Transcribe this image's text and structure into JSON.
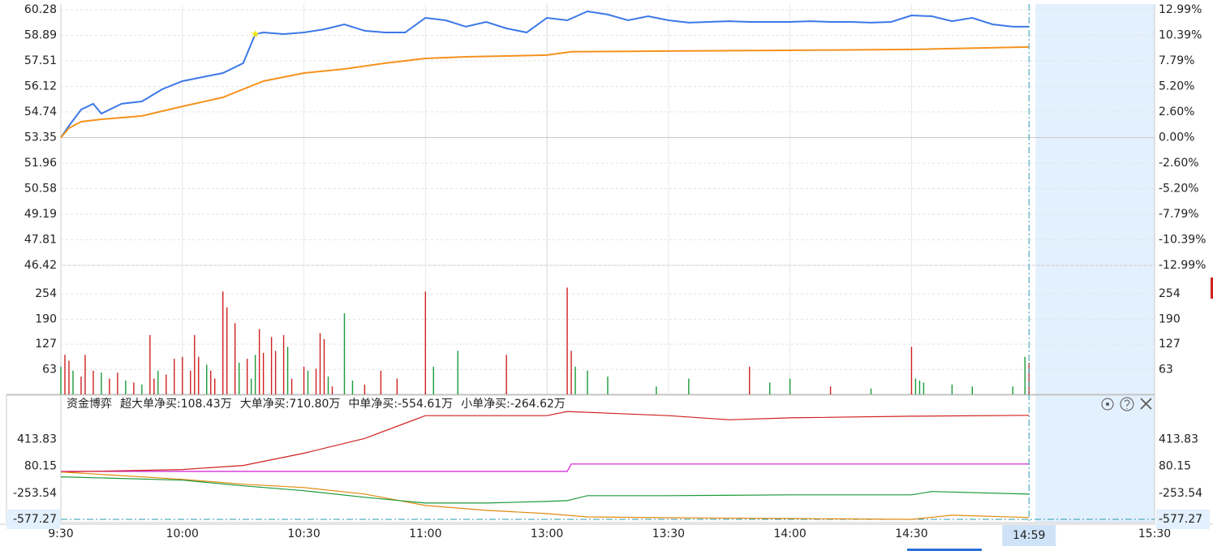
{
  "chart_data": [
    {
      "type": "line",
      "xlim": [
        0,
        270
      ],
      "ylim": [
        46.42,
        60.28
      ],
      "yticks": [
        60.28,
        58.89,
        57.51,
        56.12,
        54.74,
        53.35,
        51.96,
        50.58,
        49.19,
        47.81,
        46.42
      ],
      "y2lim": [
        -12.99,
        12.99
      ],
      "y2ticks": [
        {
          "value": 12.99,
          "label": "12.99%"
        },
        {
          "value": 10.39,
          "label": "10.39%"
        },
        {
          "value": 7.79,
          "label": "7.79%"
        },
        {
          "value": 5.2,
          "label": "5.20%"
        },
        {
          "value": 2.6,
          "label": "2.60%"
        },
        {
          "value": 0,
          "label": "0.00%"
        },
        {
          "value": -2.6,
          "label": "-2.60%"
        },
        {
          "value": -5.2,
          "label": "-5.20%"
        },
        {
          "value": -7.79,
          "label": "-7.79%"
        },
        {
          "value": -10.39,
          "label": "-10.39%"
        },
        {
          "value": -12.99,
          "label": "-12.99%"
        }
      ],
      "grid": true,
      "series": [
        {
          "color": "#3b78e7",
          "x": [
            0,
            2,
            5,
            8,
            10,
            15,
            20,
            25,
            30,
            35,
            40,
            45,
            48,
            50,
            55,
            60,
            65,
            70,
            75,
            80,
            85,
            90,
            95,
            100,
            105,
            110,
            115,
            120,
            125,
            130,
            135,
            140,
            145,
            150,
            155,
            160,
            165,
            170,
            175,
            180,
            185,
            190,
            195,
            200,
            205,
            210,
            215,
            220,
            225,
            230,
            235,
            239
          ],
          "values": [
            53.35,
            53.99,
            54.87,
            55.18,
            54.65,
            55.18,
            55.31,
            55.97,
            56.41,
            56.63,
            56.85,
            57.38,
            58.96,
            59.05,
            58.96,
            59.05,
            59.22,
            59.49,
            59.14,
            59.05,
            59.05,
            59.84,
            59.71,
            59.36,
            59.62,
            59.27,
            59.05,
            59.84,
            59.71,
            60.19,
            60.02,
            59.71,
            59.93,
            59.71,
            59.58,
            59.62,
            59.66,
            59.62,
            59.62,
            59.62,
            59.66,
            59.62,
            59.62,
            59.58,
            59.62,
            59.97,
            59.93,
            59.66,
            59.84,
            59.49,
            59.36,
            59.36
          ]
        },
        {
          "color": "#f5921e",
          "x": [
            0,
            2,
            5,
            10,
            20,
            30,
            40,
            50,
            60,
            70,
            80,
            90,
            100,
            120,
            126,
            150,
            180,
            210,
            239
          ],
          "values": [
            53.35,
            53.86,
            54.21,
            54.34,
            54.52,
            55.04,
            55.53,
            56.41,
            56.85,
            57.07,
            57.38,
            57.64,
            57.73,
            57.82,
            58.0,
            58.04,
            58.08,
            58.13,
            58.26
          ]
        }
      ],
      "highlight": {
        "x": 48,
        "value": 58.96,
        "color": "#f2e200"
      }
    },
    {
      "type": "bar",
      "xlim": [
        0,
        270
      ],
      "ylim": [
        0,
        320
      ],
      "yticks": [
        254,
        190,
        127,
        63
      ],
      "x": [
        0,
        1,
        2,
        3,
        5,
        6,
        8,
        10,
        12,
        14,
        16,
        18,
        20,
        22,
        23,
        24,
        26,
        28,
        30,
        32,
        33,
        34,
        36,
        37,
        38,
        40,
        41,
        43,
        44,
        46,
        47,
        48,
        49,
        50,
        52,
        53,
        55,
        56,
        57,
        60,
        61,
        63,
        64,
        65,
        66,
        67,
        70,
        72,
        75,
        79,
        83,
        90,
        92,
        98,
        110,
        125,
        126,
        127,
        130,
        135,
        147,
        155,
        170,
        175,
        180,
        190,
        200,
        210,
        211,
        212,
        213,
        220,
        225,
        235,
        238,
        239
      ],
      "values": [
        70,
        100,
        85,
        60,
        45,
        100,
        60,
        55,
        40,
        55,
        35,
        30,
        25,
        150,
        40,
        60,
        50,
        90,
        95,
        60,
        150,
        95,
        75,
        60,
        40,
        260,
        220,
        180,
        80,
        90,
        40,
        100,
        165,
        105,
        145,
        110,
        150,
        120,
        40,
        70,
        60,
        65,
        155,
        140,
        45,
        20,
        205,
        35,
        25,
        60,
        40,
        260,
        70,
        110,
        100,
        270,
        110,
        70,
        60,
        45,
        20,
        40,
        70,
        30,
        40,
        20,
        15,
        120,
        40,
        35,
        30,
        25,
        20,
        20,
        95,
        80
      ],
      "colors": [
        "#1a9a3a",
        "#d02020",
        "#d02020",
        "#1a9a3a",
        "#d02020",
        "#d02020",
        "#d02020",
        "#1a9a3a",
        "#d02020",
        "#d02020",
        "#1a9a3a",
        "#d02020",
        "#1a9a3a",
        "#d02020",
        "#d02020",
        "#1a9a3a",
        "#d02020",
        "#d02020",
        "#d02020",
        "#d02020",
        "#d02020",
        "#d02020",
        "#1a9a3a",
        "#d02020",
        "#d02020",
        "#d02020",
        "#d02020",
        "#d02020",
        "#1a9a3a",
        "#d02020",
        "#1a9a3a",
        "#1a9a3a",
        "#d02020",
        "#d02020",
        "#d02020",
        "#d02020",
        "#d02020",
        "#1a9a3a",
        "#d02020",
        "#d02020",
        "#1a9a3a",
        "#d02020",
        "#d02020",
        "#d02020",
        "#1a9a3a",
        "#d02020",
        "#1a9a3a",
        "#1a9a3a",
        "#d02020",
        "#d02020",
        "#d02020",
        "#d02020",
        "#1a9a3a",
        "#1a9a3a",
        "#d02020",
        "#d02020",
        "#d02020",
        "#1a9a3a",
        "#1a9a3a",
        "#1a9a3a",
        "#1a9a3a",
        "#1a9a3a",
        "#d02020",
        "#1a9a3a",
        "#1a9a3a",
        "#d02020",
        "#1a9a3a",
        "#d02020",
        "#1a9a3a",
        "#1a9a3a",
        "#1a9a3a",
        "#1a9a3a",
        "#1a9a3a",
        "#1a9a3a",
        "#1a9a3a",
        "#d02020"
      ]
    },
    {
      "type": "line",
      "title": "资金博弈",
      "xlim": [
        0,
        270
      ],
      "ylim": [
        -577.27,
        960
      ],
      "yticks": [
        413.83,
        80.15,
        -253.54,
        -577.27
      ],
      "xticks": [
        {
          "value": 0,
          "label": "9:30"
        },
        {
          "value": 30,
          "label": "10:00"
        },
        {
          "value": 60,
          "label": "10:30"
        },
        {
          "value": 90,
          "label": "11:00"
        },
        {
          "value": 120,
          "label": "13:00"
        },
        {
          "value": 150,
          "label": "13:30"
        },
        {
          "value": 180,
          "label": "14:00"
        },
        {
          "value": 210,
          "label": "14:30"
        },
        {
          "value": 270,
          "label": "15:30"
        }
      ],
      "cursor": {
        "value": 239,
        "label": "14:59"
      },
      "series": [
        {
          "name": "超大单净买:108.43万",
          "color": "#d21ad2",
          "x": [
            0,
            125,
            126,
            239
          ],
          "values": [
            17,
            17,
            108.43,
            108.43
          ]
        },
        {
          "name": "大单净买:710.80万",
          "color": "#d02020",
          "x": [
            0,
            30,
            45,
            60,
            75,
            90,
            105,
            120,
            125,
            150,
            165,
            180,
            210,
            239
          ],
          "values": [
            10,
            40,
            90,
            242,
            424,
            707,
            707,
            707,
            758,
            707,
            656,
            680,
            700,
            710.8
          ]
        },
        {
          "name": "中单净买:-554.61万",
          "color": "#e08a10",
          "x": [
            0,
            30,
            45,
            60,
            75,
            90,
            105,
            120,
            130,
            150,
            180,
            210,
            220,
            239
          ],
          "values": [
            10,
            -82,
            -142,
            -183,
            -264,
            -405,
            -466,
            -506,
            -547,
            -557,
            -567,
            -577,
            -526,
            -554.61
          ]
        },
        {
          "name": "小单净买:-264.62万",
          "color": "#1a9a3a",
          "x": [
            0,
            30,
            45,
            60,
            75,
            90,
            105,
            120,
            125,
            130,
            150,
            180,
            210,
            215,
            239
          ],
          "values": [
            -51,
            -92,
            -162,
            -223,
            -304,
            -375,
            -375,
            -355,
            -345,
            -284,
            -284,
            -274,
            -274,
            -233,
            -264.62
          ]
        }
      ]
    }
  ]
}
